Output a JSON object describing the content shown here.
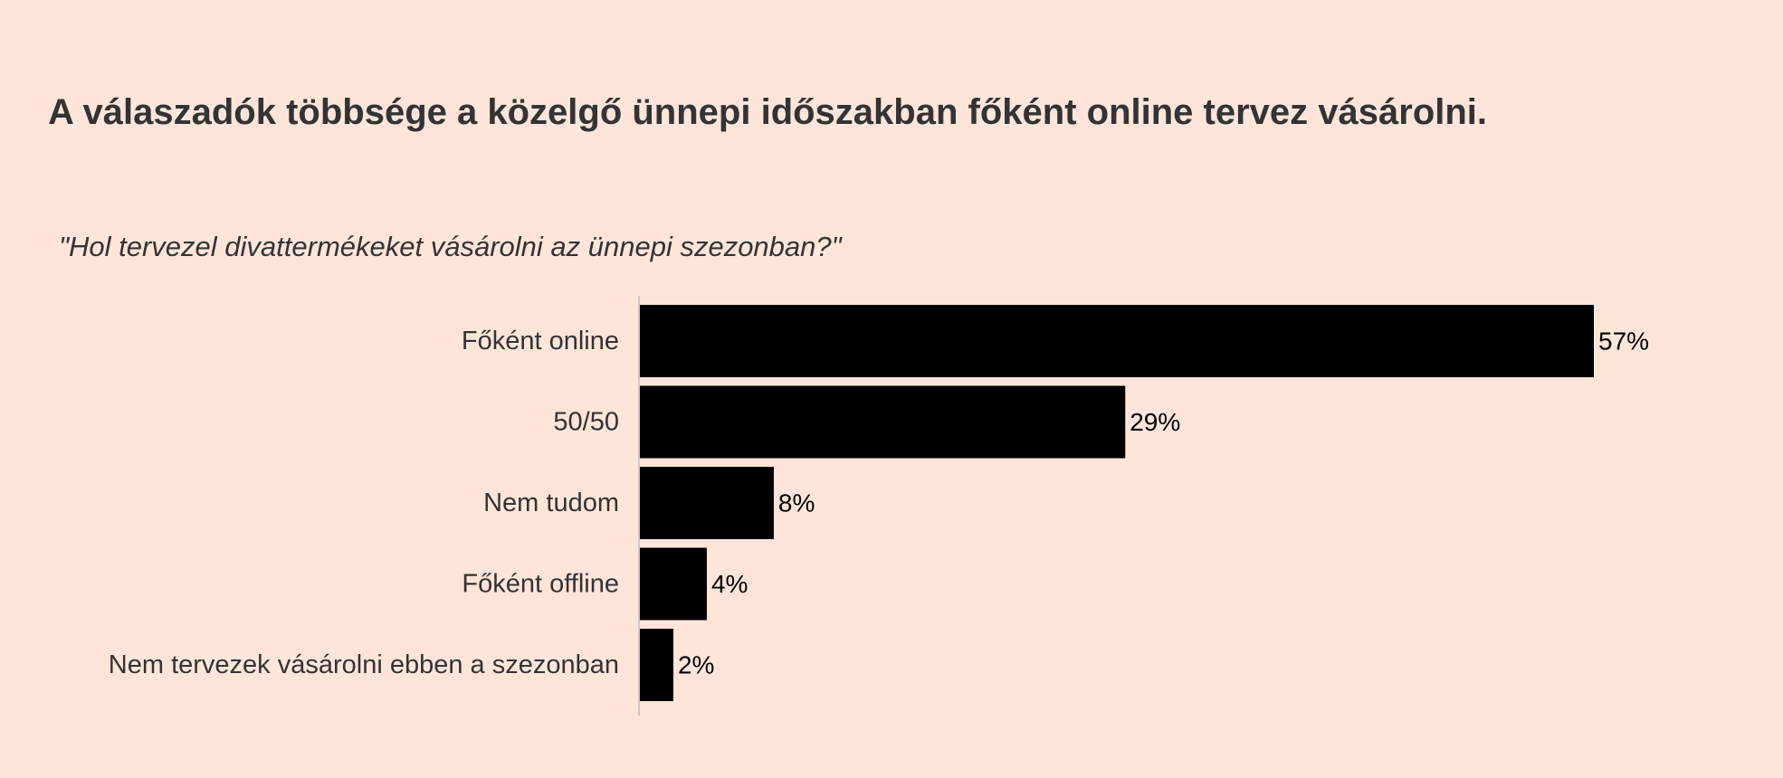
{
  "title": "A válaszadók többsége a közelgő ünnepi időszakban főként online tervez vásárolni.",
  "subtitle": "\"Hol tervezel divattermékeket vásárolni az ünnepi szezonban?\"",
  "colors": {
    "background": "#FFE5D9",
    "bar": "#000000",
    "text": "#333333",
    "axis": "#BDBDBD"
  },
  "chart_data": {
    "type": "bar",
    "orientation": "horizontal",
    "categories": [
      "Főként online",
      "50/50",
      "Nem tudom",
      "Főként offline",
      "Nem tervezek vásárolni ebben a szezonban"
    ],
    "values": [
      57,
      29,
      8,
      4,
      2
    ],
    "value_labels": [
      "57%",
      "29%",
      "8%",
      "4%",
      "2%"
    ],
    "unit": "%",
    "xlim": [
      0,
      57
    ],
    "grid": false,
    "legend": "none"
  }
}
